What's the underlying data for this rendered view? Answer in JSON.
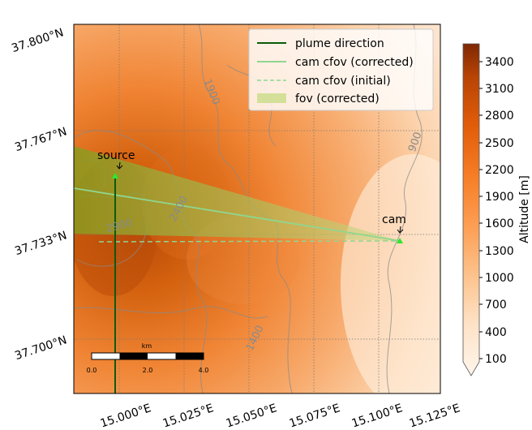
{
  "map": {
    "lat_labels": [
      "37.800°N",
      "37.767°N",
      "37.733°N",
      "37.700°N"
    ],
    "lon_labels": [
      "15.000°E",
      "15.025°E",
      "15.050°E",
      "15.075°E",
      "15.100°E",
      "15.125°E"
    ],
    "contour_labels": [
      "1900",
      "900",
      "2400",
      "2900",
      "1400"
    ],
    "markers": {
      "source_label": "source",
      "cam_label": "cam"
    },
    "scalebar": {
      "unit": "km",
      "ticks": [
        "0.0",
        "2.0",
        "4.0"
      ]
    }
  },
  "legend": {
    "items": [
      {
        "label": "plume direction",
        "color": "#0a5c0a",
        "style": "solid"
      },
      {
        "label": "cam cfov (corrected)",
        "color": "#8fd68f",
        "style": "solid"
      },
      {
        "label": "cam cfov (initial)",
        "color": "#8fd68f",
        "style": "dashed"
      },
      {
        "label": "fov (corrected)",
        "color": "#c9dc87",
        "style": "patch"
      }
    ]
  },
  "colorbar": {
    "label": "Altitude [m]",
    "ticks": [
      "3400",
      "3100",
      "2800",
      "2500",
      "2200",
      "1900",
      "1600",
      "1300",
      "1000",
      "700",
      "400",
      "100"
    ],
    "colors": {
      "low": "#fff5eb",
      "mid": "#f48c3a",
      "high": "#7f2704"
    }
  }
}
